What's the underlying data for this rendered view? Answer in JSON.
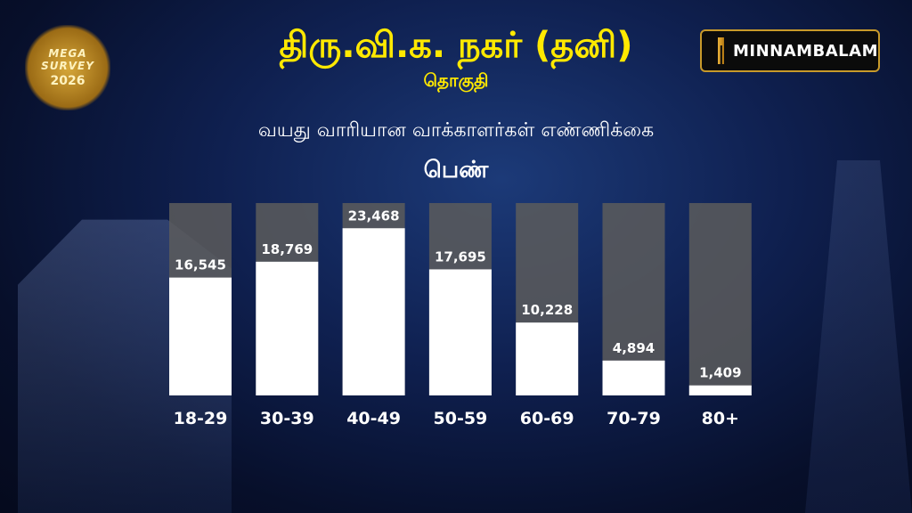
{
  "logo": {
    "line1": "MEGA SURVEY",
    "line2": "2026"
  },
  "brand": {
    "name": "MINNAMBALAM"
  },
  "header": {
    "title": "திரு.வி.க. நகர் (தனி)",
    "subtitle": "தொகுதி"
  },
  "chart_data": {
    "type": "bar",
    "title": "வயது வாரியான வாக்காளர்கள் எண்ணிக்கை",
    "subtitle": "பெண்",
    "categories": [
      "18-29",
      "30-39",
      "40-49",
      "50-59",
      "60-69",
      "70-79",
      "80+"
    ],
    "values": [
      16545,
      18769,
      23468,
      17695,
      10228,
      4894,
      1409
    ],
    "value_labels": [
      "16,545",
      "18,769",
      "23,468",
      "17,695",
      "10,228",
      "4,894",
      "1,409"
    ],
    "ylim": [
      0,
      27000
    ],
    "grid": false,
    "bar_color": "#ffffff",
    "track_color": "#5c5c5c",
    "label_color": "#ffffff"
  }
}
